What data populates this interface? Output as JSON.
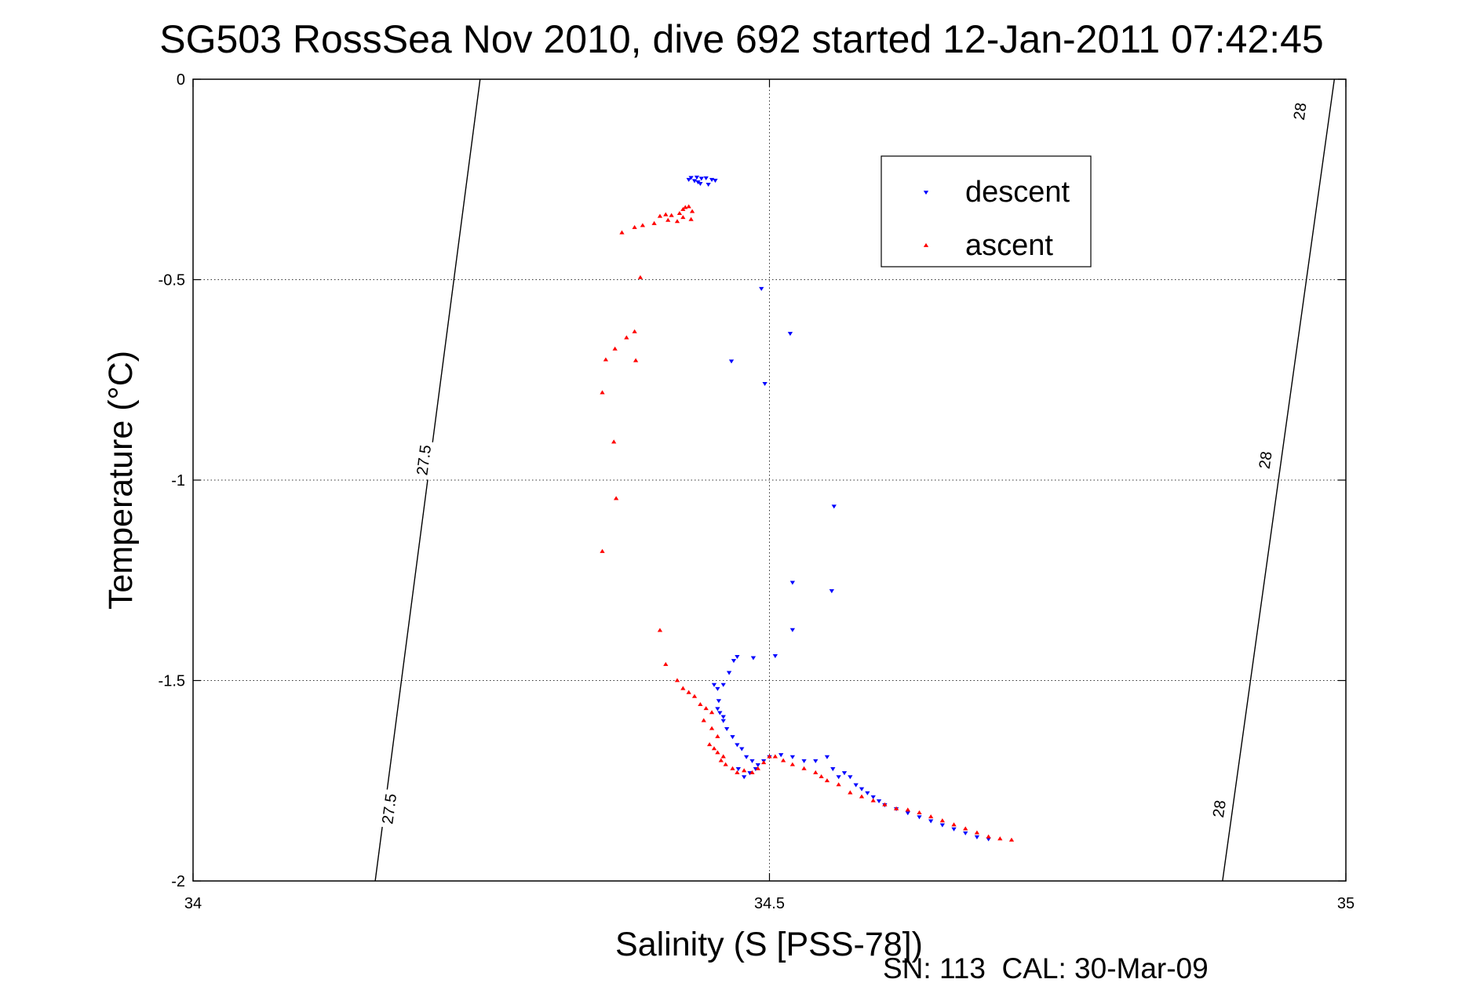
{
  "chart_data": {
    "type": "scatter",
    "title": "SG503 RossSea Nov 2010, dive 692 started 12-Jan-2011 07:42:45",
    "xlabel": "Salinity (S [PSS-78])",
    "ylabel": "Temperature (°C)",
    "footer": "SN: 113  CAL: 30-Mar-09",
    "xlim": [
      34,
      35
    ],
    "ylim": [
      -2,
      0
    ],
    "xticks": [
      34,
      34.5,
      35
    ],
    "xtick_labels": [
      "34",
      "34.5",
      "35"
    ],
    "yticks": [
      0,
      -0.5,
      -1,
      -1.5,
      -2
    ],
    "ytick_labels": [
      "0",
      "-0.5",
      "-1",
      "-1.5",
      "-2"
    ],
    "grid": true,
    "legend_position": "top-right",
    "colors": {
      "descent": "#0000ff",
      "ascent": "#ff0000"
    },
    "isopycnals": [
      {
        "label": "27.5",
        "points": [
          [
            34.249,
            0
          ],
          [
            34.158,
            -2
          ]
        ],
        "label_positions": [
          [
            34.2,
            -0.95
          ],
          [
            34.17,
            -1.82
          ]
        ]
      },
      {
        "label": "28",
        "points": [
          [
            34.99,
            0
          ],
          [
            34.893,
            -2
          ]
        ],
        "label_positions": [
          [
            34.96,
            -0.08
          ],
          [
            34.93,
            -0.95
          ],
          [
            34.89,
            -1.82
          ]
        ]
      }
    ],
    "series": [
      {
        "name": "descent",
        "marker": "triangle-down",
        "points": [
          [
            34.432,
            -0.245
          ],
          [
            34.437,
            -0.244
          ],
          [
            34.441,
            -0.247
          ],
          [
            34.445,
            -0.246
          ],
          [
            34.45,
            -0.25
          ],
          [
            34.453,
            -0.252
          ],
          [
            34.438,
            -0.256
          ],
          [
            34.435,
            -0.253
          ],
          [
            34.43,
            -0.25
          ],
          [
            34.447,
            -0.262
          ],
          [
            34.44,
            -0.26
          ],
          [
            34.493,
            -0.522
          ],
          [
            34.518,
            -0.634
          ],
          [
            34.467,
            -0.703
          ],
          [
            34.496,
            -0.759
          ],
          [
            34.556,
            -1.065
          ],
          [
            34.52,
            -1.255
          ],
          [
            34.554,
            -1.276
          ],
          [
            34.52,
            -1.373
          ],
          [
            34.505,
            -1.438
          ],
          [
            34.486,
            -1.443
          ],
          [
            34.472,
            -1.44
          ],
          [
            34.469,
            -1.45
          ],
          [
            34.465,
            -1.48
          ],
          [
            34.46,
            -1.51
          ],
          [
            34.455,
            -1.52
          ],
          [
            34.452,
            -1.51
          ],
          [
            34.456,
            -1.55
          ],
          [
            34.455,
            -1.57
          ],
          [
            34.457,
            -1.58
          ],
          [
            34.46,
            -1.59
          ],
          [
            34.46,
            -1.6
          ],
          [
            34.463,
            -1.62
          ],
          [
            34.468,
            -1.64
          ],
          [
            34.472,
            -1.66
          ],
          [
            34.476,
            -1.67
          ],
          [
            34.48,
            -1.69
          ],
          [
            34.485,
            -1.7
          ],
          [
            34.488,
            -1.72
          ],
          [
            34.483,
            -1.73
          ],
          [
            34.478,
            -1.74
          ],
          [
            34.473,
            -1.72
          ],
          [
            34.49,
            -1.71
          ],
          [
            34.495,
            -1.7
          ],
          [
            34.5,
            -1.69
          ],
          [
            34.51,
            -1.685
          ],
          [
            34.52,
            -1.69
          ],
          [
            34.53,
            -1.7
          ],
          [
            34.54,
            -1.7
          ],
          [
            34.55,
            -1.69
          ],
          [
            34.555,
            -1.72
          ],
          [
            34.56,
            -1.74
          ],
          [
            34.565,
            -1.73
          ],
          [
            34.57,
            -1.74
          ],
          [
            34.575,
            -1.76
          ],
          [
            34.58,
            -1.77
          ],
          [
            34.585,
            -1.78
          ],
          [
            34.59,
            -1.79
          ],
          [
            34.595,
            -1.8
          ],
          [
            34.6,
            -1.81
          ],
          [
            34.61,
            -1.82
          ],
          [
            34.62,
            -1.83
          ],
          [
            34.63,
            -1.84
          ],
          [
            34.64,
            -1.85
          ],
          [
            34.65,
            -1.86
          ],
          [
            34.66,
            -1.87
          ],
          [
            34.67,
            -1.88
          ],
          [
            34.68,
            -1.89
          ],
          [
            34.69,
            -1.895
          ]
        ]
      },
      {
        "name": "ascent",
        "marker": "triangle-up",
        "points": [
          [
            34.427,
            -0.32
          ],
          [
            34.43,
            -0.318
          ],
          [
            34.425,
            -0.325
          ],
          [
            34.433,
            -0.33
          ],
          [
            34.422,
            -0.335
          ],
          [
            34.415,
            -0.34
          ],
          [
            34.41,
            -0.338
          ],
          [
            34.405,
            -0.342
          ],
          [
            34.425,
            -0.345
          ],
          [
            34.432,
            -0.35
          ],
          [
            34.42,
            -0.355
          ],
          [
            34.412,
            -0.352
          ],
          [
            34.4,
            -0.36
          ],
          [
            34.39,
            -0.365
          ],
          [
            34.383,
            -0.37
          ],
          [
            34.372,
            -0.383
          ],
          [
            34.388,
            -0.495
          ],
          [
            34.383,
            -0.63
          ],
          [
            34.376,
            -0.645
          ],
          [
            34.366,
            -0.673
          ],
          [
            34.384,
            -0.702
          ],
          [
            34.358,
            -0.7
          ],
          [
            34.355,
            -0.782
          ],
          [
            34.365,
            -0.905
          ],
          [
            34.367,
            -1.046
          ],
          [
            34.355,
            -1.178
          ],
          [
            34.405,
            -1.375
          ],
          [
            34.41,
            -1.46
          ],
          [
            34.42,
            -1.5
          ],
          [
            34.425,
            -1.52
          ],
          [
            34.43,
            -1.53
          ],
          [
            34.435,
            -1.54
          ],
          [
            34.44,
            -1.56
          ],
          [
            34.445,
            -1.57
          ],
          [
            34.45,
            -1.58
          ],
          [
            34.443,
            -1.6
          ],
          [
            34.45,
            -1.62
          ],
          [
            34.455,
            -1.64
          ],
          [
            34.448,
            -1.66
          ],
          [
            34.452,
            -1.67
          ],
          [
            34.455,
            -1.68
          ],
          [
            34.46,
            -1.69
          ],
          [
            34.458,
            -1.7
          ],
          [
            34.462,
            -1.71
          ],
          [
            34.468,
            -1.72
          ],
          [
            34.472,
            -1.73
          ],
          [
            34.478,
            -1.725
          ],
          [
            34.485,
            -1.73
          ],
          [
            34.49,
            -1.72
          ],
          [
            34.495,
            -1.705
          ],
          [
            34.5,
            -1.69
          ],
          [
            34.505,
            -1.69
          ],
          [
            34.512,
            -1.7
          ],
          [
            34.52,
            -1.71
          ],
          [
            34.53,
            -1.72
          ],
          [
            34.54,
            -1.73
          ],
          [
            34.545,
            -1.74
          ],
          [
            34.55,
            -1.75
          ],
          [
            34.56,
            -1.76
          ],
          [
            34.57,
            -1.78
          ],
          [
            34.58,
            -1.79
          ],
          [
            34.59,
            -1.8
          ],
          [
            34.6,
            -1.81
          ],
          [
            34.61,
            -1.82
          ],
          [
            34.62,
            -1.823
          ],
          [
            34.63,
            -1.83
          ],
          [
            34.64,
            -1.84
          ],
          [
            34.65,
            -1.85
          ],
          [
            34.66,
            -1.86
          ],
          [
            34.67,
            -1.87
          ],
          [
            34.68,
            -1.88
          ],
          [
            34.69,
            -1.89
          ],
          [
            34.7,
            -1.895
          ],
          [
            34.71,
            -1.898
          ]
        ]
      }
    ]
  }
}
